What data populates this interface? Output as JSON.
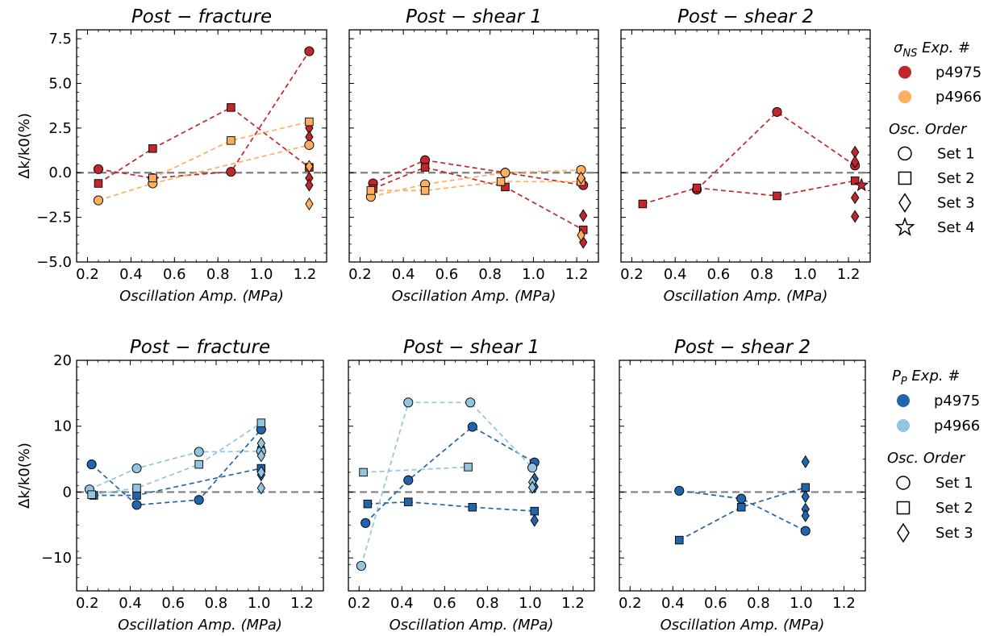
{
  "colors": {
    "p4975_sigma": "#c0272d",
    "p4966_sigma": "#fdae61",
    "p4975_pp": "#2166ac",
    "p4966_pp": "#92c5de",
    "zero_line": "#7f7f7f"
  },
  "legends": [
    {
      "title": "σNS Exp. #",
      "title_main": "σ",
      "title_sub": "NS",
      "title_rest": " Exp. #",
      "experiments": [
        {
          "label": "p4975",
          "color": "#c0272d"
        },
        {
          "label": "p4966",
          "color": "#fdae61"
        }
      ],
      "order_title": "Osc. Order",
      "sets": [
        {
          "label": "Set 1",
          "marker": "circle"
        },
        {
          "label": "Set 2",
          "marker": "square"
        },
        {
          "label": "Set 3",
          "marker": "diamond"
        },
        {
          "label": "Set 4",
          "marker": "star"
        }
      ]
    },
    {
      "title": "PP Exp. #",
      "title_main": "P",
      "title_sub": "P",
      "title_rest": " Exp. #",
      "experiments": [
        {
          "label": "p4975",
          "color": "#2166ac"
        },
        {
          "label": "p4966",
          "color": "#92c5de"
        }
      ],
      "order_title": "Osc. Order",
      "sets": [
        {
          "label": "Set 1",
          "marker": "circle"
        },
        {
          "label": "Set 2",
          "marker": "square"
        },
        {
          "label": "Set 3",
          "marker": "diamond"
        }
      ]
    }
  ],
  "chart_data": [
    {
      "type": "scatter",
      "title": "Post − fracture",
      "xlabel": "Oscillation Amp. (MPa)",
      "ylabel": "Δk/k0(%)",
      "xlim": [
        0.15,
        1.3
      ],
      "ylim": [
        -5,
        8
      ],
      "xticks": [
        "0.2",
        "0.4",
        "0.6",
        "0.8",
        "1.0",
        "1.2"
      ],
      "yticks": [
        "−5.0",
        "−2.5",
        "0.0",
        "2.5",
        "5.0",
        "7.5"
      ],
      "series": [
        {
          "name": "p4975",
          "set": "Set 1",
          "marker": "circle",
          "color": "#c0272d",
          "line": true,
          "x": [
            0.25,
            0.5,
            0.86,
            1.22
          ],
          "y": [
            0.2,
            -0.3,
            0.05,
            6.8
          ]
        },
        {
          "name": "p4975",
          "set": "Set 2",
          "marker": "square",
          "color": "#c0272d",
          "line": true,
          "x": [
            0.25,
            0.5,
            0.86,
            1.22
          ],
          "y": [
            -0.6,
            1.35,
            3.65,
            0.3
          ]
        },
        {
          "name": "p4975",
          "set": "Set 3",
          "marker": "diamond",
          "color": "#c0272d",
          "line": false,
          "x": [
            1.22,
            1.22,
            1.22,
            1.22
          ],
          "y": [
            2.5,
            2.0,
            -0.3,
            -0.7
          ]
        },
        {
          "name": "p4966",
          "set": "Set 1",
          "marker": "circle",
          "color": "#fdae61",
          "line": true,
          "x": [
            0.25,
            0.5,
            1.22
          ],
          "y": [
            -1.55,
            -0.6,
            1.55
          ]
        },
        {
          "name": "p4966",
          "set": "Set 2",
          "marker": "square",
          "color": "#fdae61",
          "line": true,
          "x": [
            0.5,
            0.86,
            1.22
          ],
          "y": [
            -0.3,
            1.8,
            2.85
          ]
        },
        {
          "name": "p4966",
          "set": "Set 3",
          "marker": "diamond",
          "color": "#fdae61",
          "line": false,
          "x": [
            1.22,
            1.22
          ],
          "y": [
            0.35,
            -1.75
          ]
        }
      ]
    },
    {
      "type": "scatter",
      "title": "Post − shear 1",
      "xlabel": "Oscillation Amp. (MPa)",
      "ylabel": "",
      "xlim": [
        0.15,
        1.3
      ],
      "ylim": [
        -5,
        8
      ],
      "xticks": [
        "0.2",
        "0.4",
        "0.6",
        "0.8",
        "1.0",
        "1.2"
      ],
      "yticks": [],
      "series": [
        {
          "name": "p4975",
          "set": "Set 1",
          "marker": "circle",
          "color": "#c0272d",
          "line": true,
          "x": [
            0.26,
            0.5,
            0.87,
            1.23
          ],
          "y": [
            -0.6,
            0.7,
            0.0,
            -0.7
          ]
        },
        {
          "name": "p4975",
          "set": "Set 2",
          "marker": "square",
          "color": "#c0272d",
          "line": true,
          "x": [
            0.26,
            0.5,
            0.87,
            1.23
          ],
          "y": [
            -0.9,
            0.3,
            -0.8,
            -3.2
          ]
        },
        {
          "name": "p4975",
          "set": "Set 3",
          "marker": "diamond",
          "color": "#c0272d",
          "line": false,
          "x": [
            1.23,
            1.23
          ],
          "y": [
            -2.4,
            -3.9
          ]
        },
        {
          "name": "p4966",
          "set": "Set 1",
          "marker": "circle",
          "color": "#fdae61",
          "line": true,
          "x": [
            0.25,
            0.5,
            0.87,
            1.22
          ],
          "y": [
            -1.35,
            -0.65,
            0.0,
            0.15
          ]
        },
        {
          "name": "p4966",
          "set": "Set 2",
          "marker": "square",
          "color": "#fdae61",
          "line": true,
          "x": [
            0.25,
            0.5,
            0.85,
            1.22
          ],
          "y": [
            -1.0,
            -1.0,
            -0.5,
            -0.5
          ]
        },
        {
          "name": "p4966",
          "set": "Set 3",
          "marker": "diamond",
          "color": "#fdae61",
          "line": false,
          "x": [
            1.22,
            1.22
          ],
          "y": [
            -0.3,
            -3.5
          ]
        }
      ]
    },
    {
      "type": "scatter",
      "title": "Post − shear 2",
      "xlabel": "Oscillation Amp. (MPa)",
      "ylabel": "",
      "xlim": [
        0.15,
        1.3
      ],
      "ylim": [
        -5,
        8
      ],
      "xticks": [
        "0.2",
        "0.4",
        "0.6",
        "0.8",
        "1.0",
        "1.2"
      ],
      "yticks": [],
      "series": [
        {
          "name": "p4975",
          "set": "Set 1",
          "marker": "circle",
          "color": "#c0272d",
          "line": true,
          "x": [
            0.5,
            0.87,
            1.23
          ],
          "y": [
            -0.95,
            3.4,
            0.4
          ]
        },
        {
          "name": "p4975",
          "set": "Set 2",
          "marker": "square",
          "color": "#c0272d",
          "line": true,
          "x": [
            0.25,
            0.5,
            0.87,
            1.23
          ],
          "y": [
            -1.75,
            -0.85,
            -1.3,
            -0.45
          ]
        },
        {
          "name": "p4975",
          "set": "Set 3",
          "marker": "diamond",
          "color": "#c0272d",
          "line": false,
          "x": [
            1.23,
            1.23,
            1.23,
            1.23
          ],
          "y": [
            1.15,
            0.6,
            -1.4,
            -2.45
          ]
        },
        {
          "name": "p4975",
          "set": "Set 4",
          "marker": "star",
          "color": "#c0272d",
          "line": false,
          "x": [
            1.26
          ],
          "y": [
            -0.7
          ]
        }
      ]
    },
    {
      "type": "scatter",
      "title": "Post − fracture",
      "xlabel": "Oscillation Amp. (MPa)",
      "ylabel": "Δk/k0(%)",
      "xlim": [
        0.15,
        1.3
      ],
      "ylim": [
        -15,
        20
      ],
      "xticks": [
        "0.2",
        "0.4",
        "0.6",
        "0.8",
        "1.0",
        "1.2"
      ],
      "yticks": [
        "−10",
        "0",
        "10",
        "20"
      ],
      "series": [
        {
          "name": "p4975",
          "set": "Set 1",
          "marker": "circle",
          "color": "#2166ac",
          "line": true,
          "x": [
            0.22,
            0.43,
            0.72,
            1.01
          ],
          "y": [
            4.2,
            -1.95,
            -1.2,
            9.5
          ]
        },
        {
          "name": "p4975",
          "set": "Set 2",
          "marker": "square",
          "color": "#2166ac",
          "line": true,
          "x": [
            0.23,
            0.43,
            1.01
          ],
          "y": [
            -0.5,
            -0.5,
            3.6
          ]
        },
        {
          "name": "p4975",
          "set": "Set 3",
          "marker": "diamond",
          "color": "#2166ac",
          "line": false,
          "x": [
            1.01,
            1.01
          ],
          "y": [
            6.8,
            2.6
          ]
        },
        {
          "name": "p4966",
          "set": "Set 1",
          "marker": "circle",
          "color": "#92c5de",
          "line": true,
          "x": [
            0.21,
            0.43,
            0.72,
            1.01
          ],
          "y": [
            0.4,
            3.6,
            6.1,
            6.2
          ]
        },
        {
          "name": "p4966",
          "set": "Set 2",
          "marker": "square",
          "color": "#92c5de",
          "line": true,
          "x": [
            0.22,
            0.43,
            0.72,
            1.01
          ],
          "y": [
            -0.4,
            0.6,
            4.2,
            10.5
          ]
        },
        {
          "name": "p4966",
          "set": "Set 3",
          "marker": "diamond",
          "color": "#92c5de",
          "line": false,
          "x": [
            1.01,
            1.01,
            1.01,
            1.01
          ],
          "y": [
            7.4,
            5.5,
            3.0,
            0.6
          ]
        }
      ]
    },
    {
      "type": "scatter",
      "title": "Post − shear 1",
      "xlabel": "Oscillation Amp. (MPa)",
      "ylabel": "",
      "xlim": [
        0.15,
        1.3
      ],
      "ylim": [
        -15,
        20
      ],
      "xticks": [
        "0.2",
        "0.4",
        "0.6",
        "0.8",
        "1.0",
        "1.2"
      ],
      "yticks": [],
      "series": [
        {
          "name": "p4975",
          "set": "Set 1",
          "marker": "circle",
          "color": "#2166ac",
          "line": true,
          "x": [
            0.23,
            0.43,
            0.73,
            1.02
          ],
          "y": [
            -4.7,
            1.8,
            9.9,
            4.5
          ]
        },
        {
          "name": "p4975",
          "set": "Set 2",
          "marker": "square",
          "color": "#2166ac",
          "line": true,
          "x": [
            0.24,
            0.43,
            0.73,
            1.02
          ],
          "y": [
            -1.8,
            -1.5,
            -2.3,
            -2.9
          ]
        },
        {
          "name": "p4975",
          "set": "Set 3",
          "marker": "diamond",
          "color": "#2166ac",
          "line": false,
          "x": [
            1.02,
            1.02,
            1.02
          ],
          "y": [
            2.0,
            0.8,
            -4.3
          ]
        },
        {
          "name": "p4966",
          "set": "Set 1",
          "marker": "circle",
          "color": "#92c5de",
          "line": true,
          "x": [
            0.21,
            0.43,
            0.72,
            1.01
          ],
          "y": [
            -11.2,
            13.6,
            13.6,
            3.7
          ]
        },
        {
          "name": "p4966",
          "set": "Set 2",
          "marker": "square",
          "color": "#92c5de",
          "line": true,
          "x": [
            0.22,
            0.71
          ],
          "y": [
            3.0,
            3.8
          ]
        },
        {
          "name": "p4966",
          "set": "Set 3",
          "marker": "diamond",
          "color": "#92c5de",
          "line": false,
          "x": [
            1.01,
            1.01
          ],
          "y": [
            1.5,
            0.7
          ]
        }
      ]
    },
    {
      "type": "scatter",
      "title": "Post − shear 2",
      "xlabel": "Oscillation Amp. (MPa)",
      "ylabel": "",
      "xlim": [
        0.15,
        1.3
      ],
      "ylim": [
        -15,
        20
      ],
      "xticks": [
        "0.2",
        "0.4",
        "0.6",
        "0.8",
        "1.0",
        "1.2"
      ],
      "yticks": [],
      "series": [
        {
          "name": "p4975",
          "set": "Set 1",
          "marker": "circle",
          "color": "#2166ac",
          "line": true,
          "x": [
            0.43,
            0.72,
            1.02
          ],
          "y": [
            0.2,
            -1.0,
            -5.9
          ]
        },
        {
          "name": "p4975",
          "set": "Set 2",
          "marker": "square",
          "color": "#2166ac",
          "line": true,
          "x": [
            0.43,
            0.72,
            1.02
          ],
          "y": [
            -7.3,
            -2.3,
            0.7
          ]
        },
        {
          "name": "p4975",
          "set": "Set 3",
          "marker": "diamond",
          "color": "#2166ac",
          "line": false,
          "x": [
            1.02,
            1.02,
            1.02,
            1.02
          ],
          "y": [
            4.6,
            -0.7,
            -2.6,
            -3.6
          ]
        }
      ]
    }
  ]
}
